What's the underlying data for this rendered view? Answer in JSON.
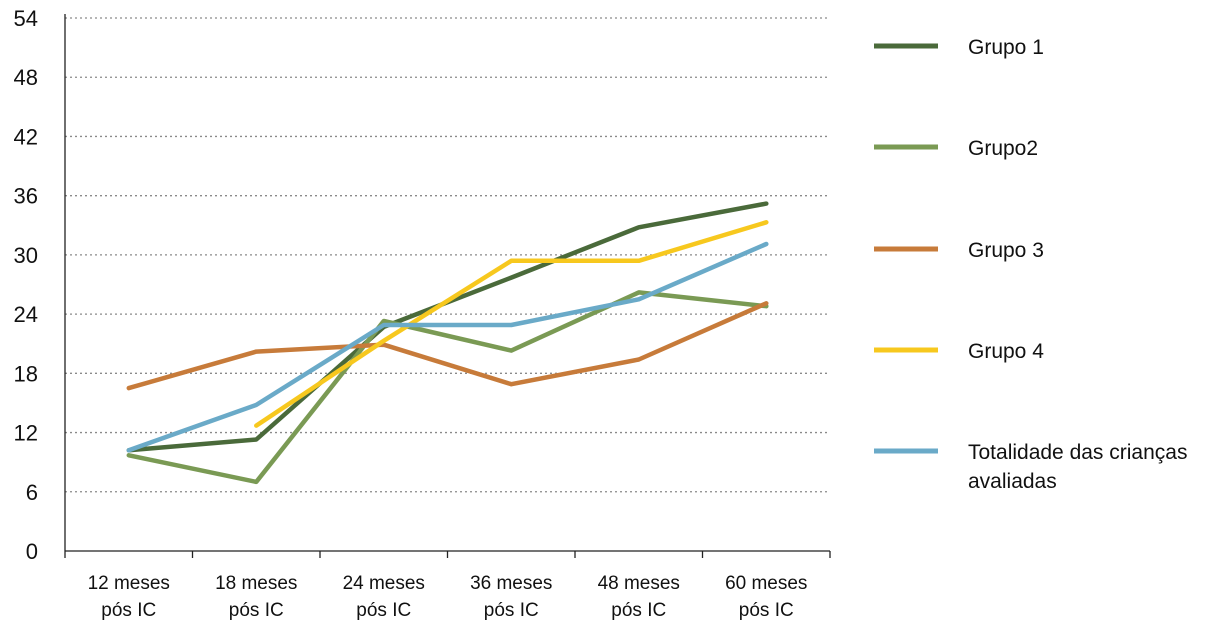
{
  "chart_data": {
    "type": "line",
    "categories": [
      [
        "12 meses",
        "pós IC"
      ],
      [
        "18 meses",
        "pós IC"
      ],
      [
        "24 meses",
        "pós IC"
      ],
      [
        "36 meses",
        "pós IC"
      ],
      [
        "48 meses",
        "pós IC"
      ],
      [
        "60 meses",
        "pós IC"
      ]
    ],
    "y_ticks": [
      0,
      6,
      12,
      18,
      24,
      30,
      36,
      42,
      48,
      54
    ],
    "ylim": [
      0,
      54
    ],
    "grid": "horizontal dotted",
    "legend_position": "right",
    "series": [
      {
        "name": "Grupo 1",
        "color": "#4a6a3a",
        "values": [
          10.2,
          11.3,
          22.7,
          27.7,
          32.8,
          35.2
        ]
      },
      {
        "name": "Grupo2",
        "color": "#7a9a54",
        "values": [
          9.7,
          7.0,
          23.3,
          20.3,
          26.2,
          24.8
        ]
      },
      {
        "name": "Grupo 3",
        "color": "#c77b3a",
        "values": [
          16.5,
          20.2,
          20.9,
          16.9,
          19.4,
          25.1
        ]
      },
      {
        "name": "Grupo 4",
        "color": "#f7c81e",
        "values": [
          null,
          12.7,
          21.3,
          29.4,
          29.4,
          33.3
        ]
      },
      {
        "name": [
          "Totalidade das crianças",
          "avaliadas"
        ],
        "color": "#6aaac8",
        "values": [
          10.2,
          14.8,
          22.9,
          22.9,
          25.5,
          31.1
        ]
      }
    ]
  }
}
